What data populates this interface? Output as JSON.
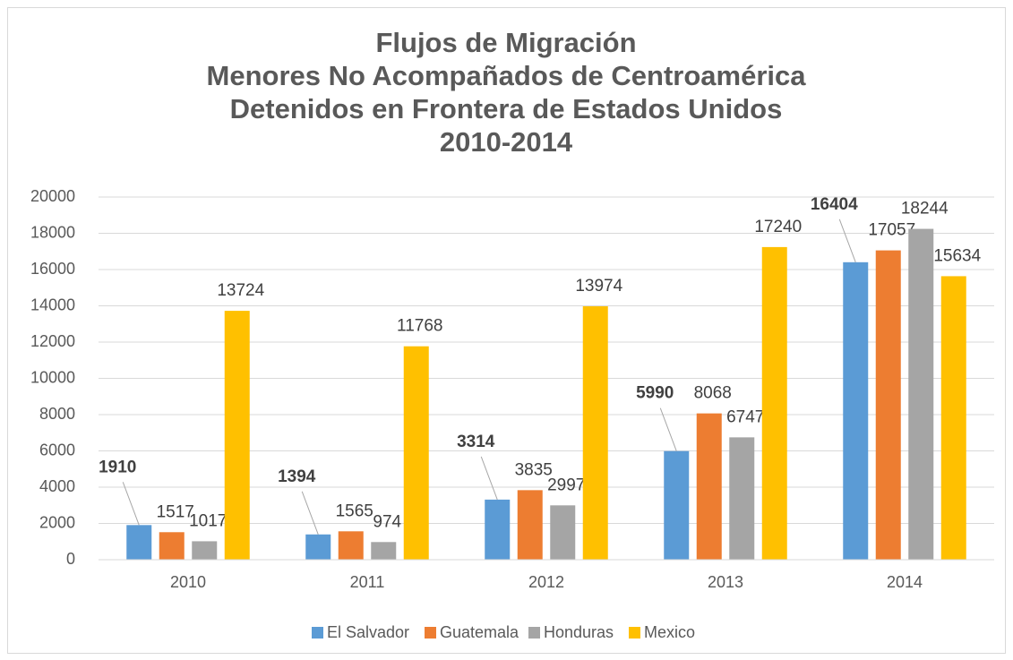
{
  "chart_data": {
    "type": "bar",
    "title": [
      "Flujos de Migración",
      "Menores No Acompañados de Centroamérica",
      "Detenidos en Frontera de Estados Unidos",
      "2010-2014"
    ],
    "categories": [
      "2010",
      "2011",
      "2012",
      "2013",
      "2014"
    ],
    "series": [
      {
        "name": "El Salvador",
        "color": "#5b9bd5",
        "values": [
          1910,
          1394,
          3314,
          5990,
          16404
        ]
      },
      {
        "name": "Guatemala",
        "color": "#ed7d31",
        "values": [
          1517,
          1565,
          3835,
          8068,
          17057
        ]
      },
      {
        "name": "Honduras",
        "color": "#a5a5a5",
        "values": [
          1017,
          974,
          2997,
          6747,
          18244
        ]
      },
      {
        "name": "Mexico",
        "color": "#ffc000",
        "values": [
          13724,
          11768,
          13974,
          17240,
          15634
        ]
      }
    ],
    "ylim": [
      0,
      20000
    ],
    "yticks": [
      0,
      2000,
      4000,
      6000,
      8000,
      10000,
      12000,
      14000,
      16000,
      18000,
      20000
    ],
    "grid": true,
    "legend": "bottom"
  }
}
